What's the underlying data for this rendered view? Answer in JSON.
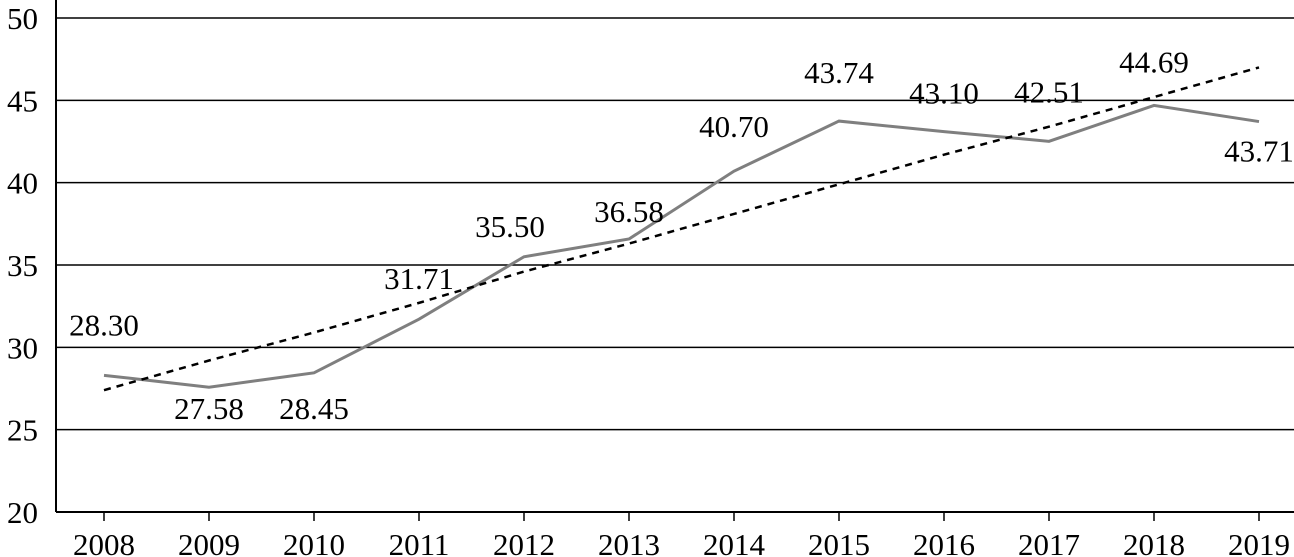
{
  "chart_data": {
    "type": "line",
    "title": "",
    "xlabel": "",
    "ylabel": "",
    "categories": [
      "2008",
      "2009",
      "2010",
      "2011",
      "2012",
      "2013",
      "2014",
      "2015",
      "2016",
      "2017",
      "2018",
      "2019"
    ],
    "series": [
      {
        "values": [
          28.3,
          27.58,
          28.45,
          31.71,
          35.5,
          36.58,
          40.7,
          43.74,
          43.1,
          42.51,
          44.69,
          43.71
        ],
        "labels": [
          "28.30",
          "27.58",
          "28.45",
          "31.71",
          "35.50",
          "36.58",
          "40.70",
          "43.74",
          "43.10",
          "42.51",
          "44.69",
          "43.71"
        ],
        "color": "#7f7f7f",
        "line_style": "solid"
      },
      {
        "values": [
          27.4,
          29.2,
          30.9,
          32.7,
          34.6,
          36.3,
          38.1,
          39.9,
          41.7,
          43.4,
          45.2,
          47.0
        ],
        "color": "#000000",
        "line_style": "dotted",
        "kind": "trendline"
      }
    ],
    "ylim": [
      20,
      50
    ],
    "yticks": [
      "20",
      "25",
      "30",
      "35",
      "40",
      "45",
      "50"
    ],
    "grid": true,
    "legend": "none"
  }
}
